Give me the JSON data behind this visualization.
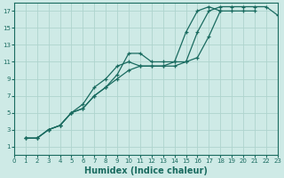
{
  "title": "",
  "xlabel": "Humidex (Indice chaleur)",
  "ylabel": "",
  "bg_color": "#ceeae6",
  "grid_color": "#aed4ce",
  "line_color": "#1a6b60",
  "marker": "+",
  "xlim": [
    0,
    23
  ],
  "ylim": [
    0,
    18
  ],
  "xticks": [
    0,
    1,
    2,
    3,
    4,
    5,
    6,
    7,
    8,
    9,
    10,
    11,
    12,
    13,
    14,
    15,
    16,
    17,
    18,
    19,
    20,
    21,
    22,
    23
  ],
  "yticks": [
    1,
    3,
    5,
    7,
    9,
    11,
    13,
    15,
    17
  ],
  "series": [
    [
      [
        1,
        2
      ],
      [
        2,
        2
      ],
      [
        3,
        3
      ],
      [
        4,
        3.5
      ],
      [
        5,
        5
      ],
      [
        6,
        5.5
      ],
      [
        7,
        7
      ],
      [
        8,
        8
      ],
      [
        9,
        9
      ],
      [
        10,
        10
      ],
      [
        11,
        10.5
      ],
      [
        12,
        10.5
      ],
      [
        13,
        10.5
      ],
      [
        14,
        10.5
      ],
      [
        15,
        11
      ],
      [
        16,
        14.5
      ],
      [
        17,
        17
      ],
      [
        18,
        17.5
      ],
      [
        19,
        17.5
      ],
      [
        20,
        17.5
      ],
      [
        21,
        17.5
      ],
      [
        22,
        17.5
      ],
      [
        23,
        16.5
      ]
    ],
    [
      [
        1,
        2
      ],
      [
        2,
        2
      ],
      [
        3,
        3
      ],
      [
        4,
        3.5
      ],
      [
        5,
        5
      ],
      [
        6,
        5.5
      ],
      [
        7,
        7
      ],
      [
        8,
        8
      ],
      [
        9,
        9.5
      ],
      [
        10,
        12
      ],
      [
        11,
        12
      ],
      [
        12,
        11
      ],
      [
        13,
        11
      ],
      [
        14,
        11
      ],
      [
        15,
        14.5
      ],
      [
        16,
        17
      ],
      [
        17,
        17.5
      ],
      [
        18,
        17
      ],
      [
        19,
        17
      ],
      [
        20,
        17
      ],
      [
        21,
        17
      ]
    ],
    [
      [
        1,
        2
      ],
      [
        2,
        2
      ],
      [
        3,
        3
      ],
      [
        4,
        3.5
      ],
      [
        5,
        5
      ],
      [
        6,
        6
      ],
      [
        7,
        8
      ],
      [
        8,
        9
      ],
      [
        9,
        10.5
      ],
      [
        10,
        11
      ],
      [
        11,
        10.5
      ],
      [
        12,
        10.5
      ],
      [
        13,
        10.5
      ],
      [
        14,
        11
      ],
      [
        15,
        11
      ],
      [
        16,
        11.5
      ],
      [
        17,
        14
      ],
      [
        18,
        17
      ]
    ]
  ],
  "figsize": [
    3.2,
    2.0
  ],
  "dpi": 100
}
